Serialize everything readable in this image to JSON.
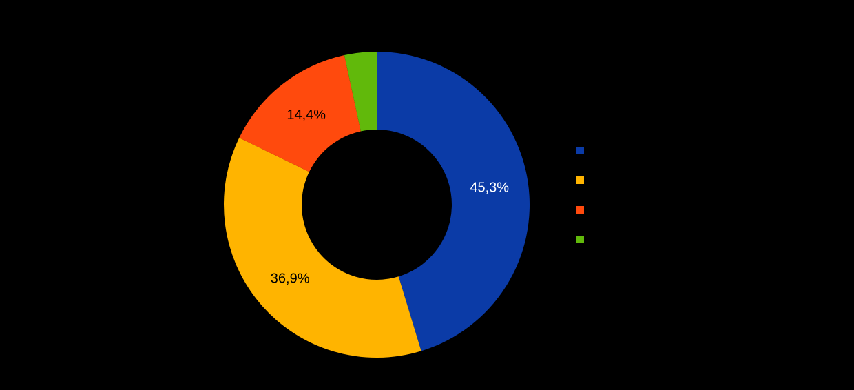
{
  "page": {
    "background": "#000000"
  },
  "chart_data": {
    "type": "pie",
    "subtype": "donut",
    "title": "",
    "values": [
      45.3,
      36.9,
      14.4,
      3.4
    ],
    "slice_labels": [
      "45,3%",
      "36,9%",
      "14,4%",
      ""
    ],
    "colors": [
      "#0B3BA7",
      "#FFB400",
      "#FF4A0D",
      "#61B90B"
    ],
    "label_colors": [
      "#FFFFFF",
      "#000000",
      "#000000",
      "#000000"
    ],
    "start_angle_deg": 0,
    "direction": "clockwise",
    "inner_radius_ratio": 0.49,
    "legend": {
      "position": "right",
      "marker_colors": [
        "#0B3BA7",
        "#FFB400",
        "#FF4A0D",
        "#61B90B"
      ],
      "labels": [
        "",
        "",
        "",
        ""
      ],
      "labels_visible": false
    }
  }
}
